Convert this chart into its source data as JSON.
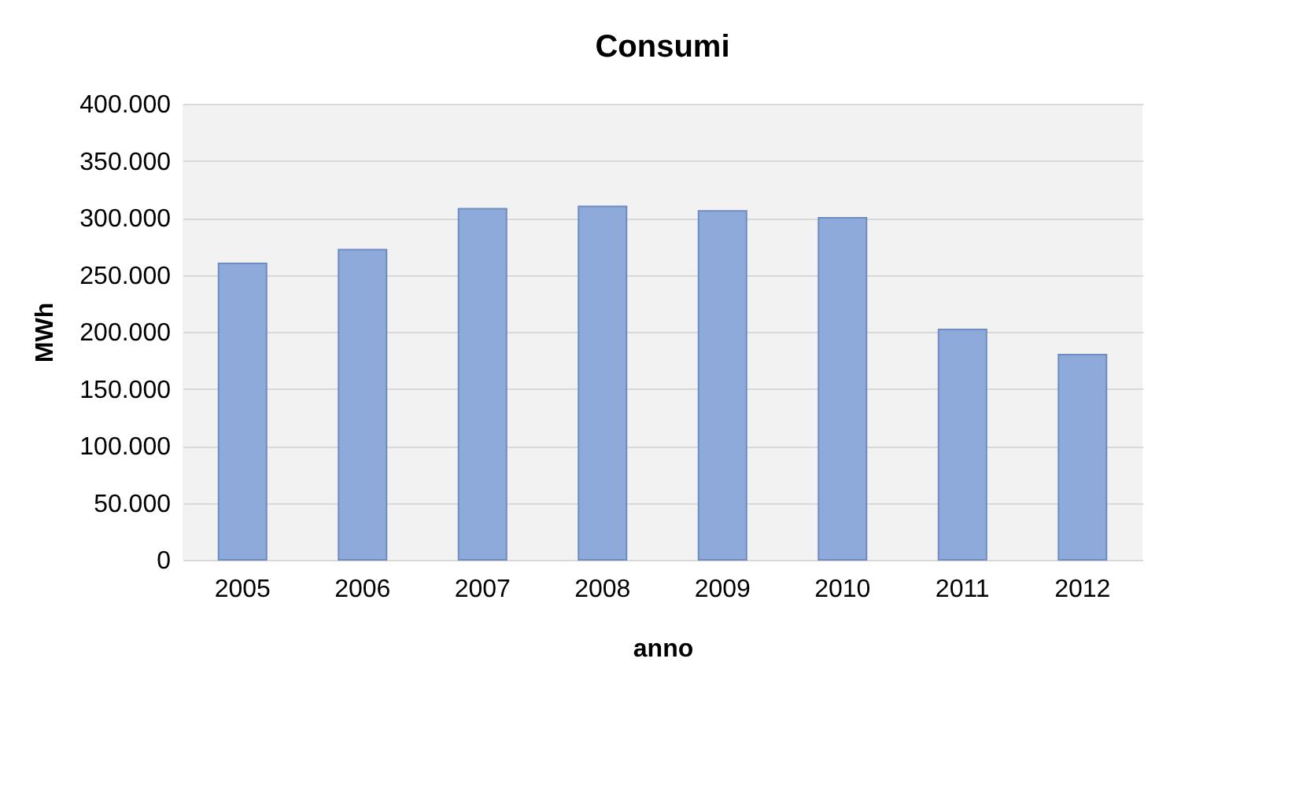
{
  "chart_data": {
    "type": "bar",
    "title": "Consumi",
    "xlabel": "anno",
    "ylabel": "MWh",
    "categories": [
      "2005",
      "2006",
      "2007",
      "2008",
      "2009",
      "2010",
      "2011",
      "2012"
    ],
    "values": [
      260000,
      272000,
      308000,
      310000,
      306000,
      300000,
      202000,
      180000
    ],
    "color": "#8eaadb",
    "ylim": [
      0,
      400000
    ],
    "yticks": [
      {
        "value": 0,
        "label": "0"
      },
      {
        "value": 50000,
        "label": "50.000"
      },
      {
        "value": 100000,
        "label": "100.000"
      },
      {
        "value": 150000,
        "label": "150.000"
      },
      {
        "value": 200000,
        "label": "200.000"
      },
      {
        "value": 250000,
        "label": "250.000"
      },
      {
        "value": 300000,
        "label": "300.000"
      },
      {
        "value": 350000,
        "label": "350.000"
      },
      {
        "value": 400000,
        "label": "400.000"
      }
    ],
    "grid": "y"
  }
}
